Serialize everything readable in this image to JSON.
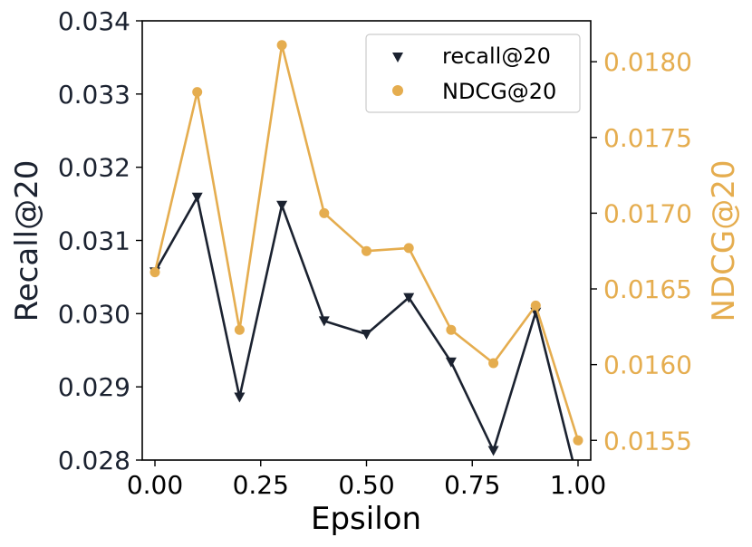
{
  "chart_data": {
    "type": "line",
    "title": "",
    "xlabel": "Epsilon",
    "ylabel_left": "Recall@20",
    "ylabel_right": "NDCG@20",
    "x": [
      0.0,
      0.1,
      0.2,
      0.3,
      0.4,
      0.5,
      0.6,
      0.7,
      0.8,
      0.9,
      1.0
    ],
    "xlim": [
      -0.03,
      1.03
    ],
    "ylim_left": [
      0.028,
      0.034
    ],
    "ylim_right": [
      0.01537,
      0.01827
    ],
    "x_ticks": [
      "0.00",
      "0.25",
      "0.50",
      "0.75",
      "1.00"
    ],
    "y_ticks_left": [
      "0.028",
      "0.029",
      "0.030",
      "0.031",
      "0.032",
      "0.033",
      "0.034"
    ],
    "y_ticks_right": [
      "0.0155",
      "0.0160",
      "0.0165",
      "0.0170",
      "0.0175",
      "0.0180"
    ],
    "grid": false,
    "legend_position": "top-right",
    "series": [
      {
        "name": "recall@20",
        "axis": "left",
        "color": "#1b2230",
        "marker": "triangle-down",
        "values": [
          0.03057,
          0.03159,
          0.02886,
          0.03148,
          0.0299,
          0.02972,
          0.03022,
          0.02934,
          0.02813,
          0.03002,
          0.0277
        ]
      },
      {
        "name": "NDCG@20",
        "axis": "right",
        "color": "#e5ad4f",
        "marker": "circle",
        "values": [
          0.01661,
          0.0178,
          0.01623,
          0.01811,
          0.017,
          0.01675,
          0.01677,
          0.01623,
          0.01601,
          0.01639,
          0.0155
        ]
      }
    ]
  }
}
